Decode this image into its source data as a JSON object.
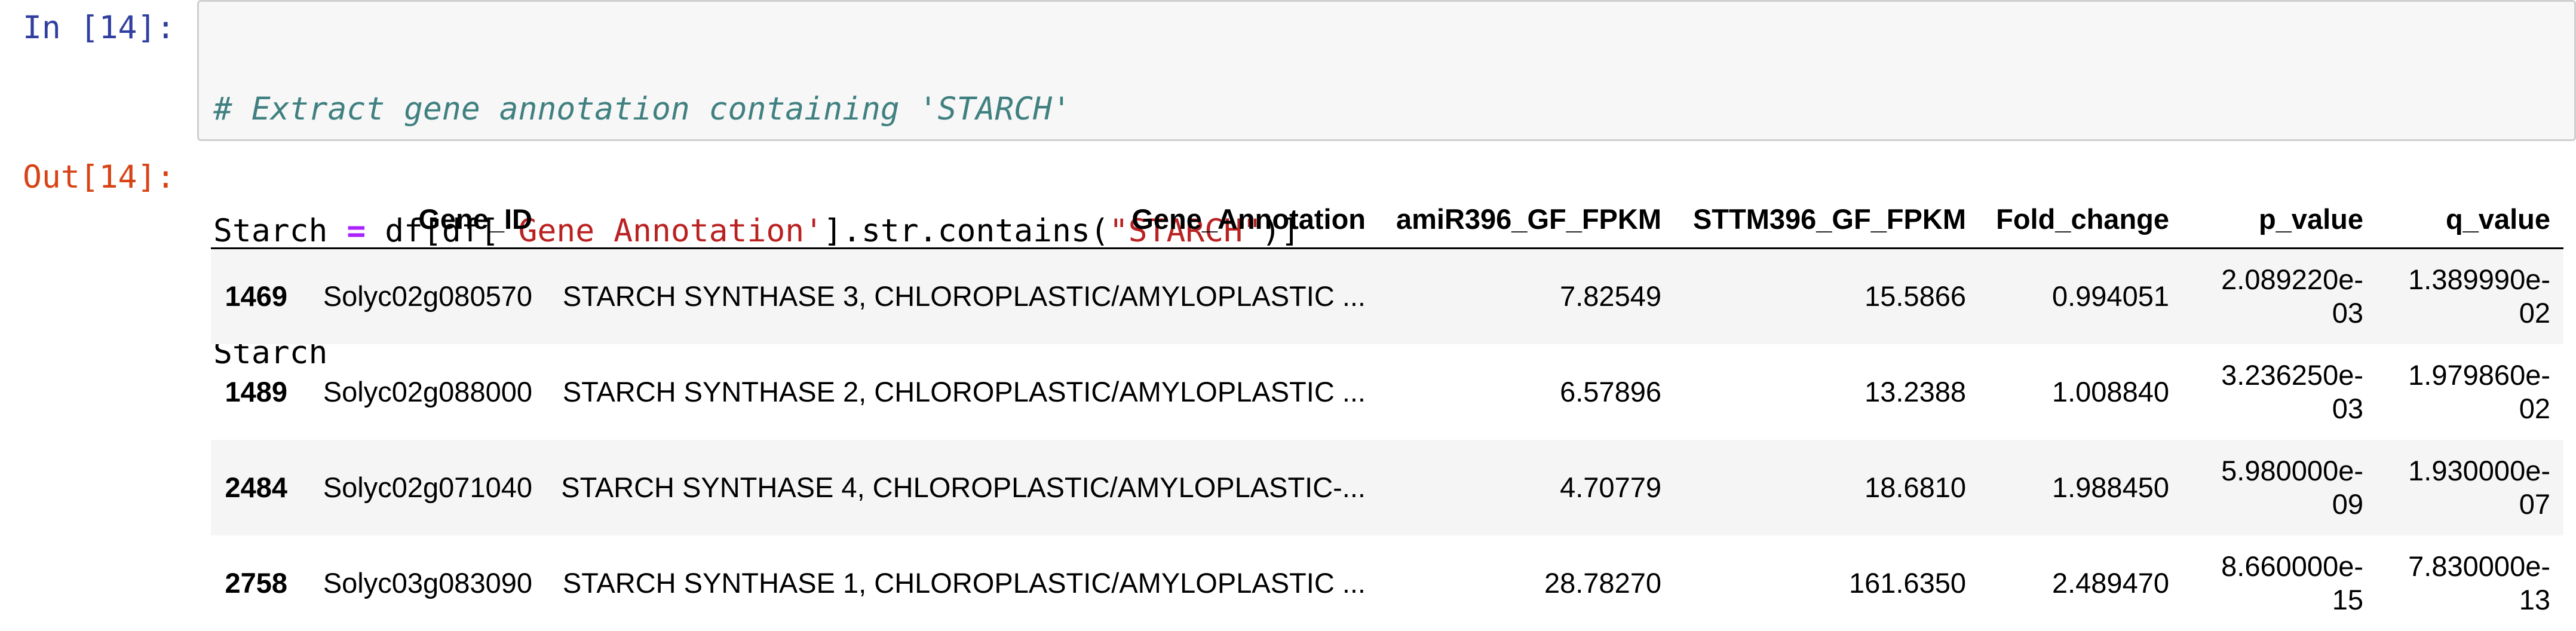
{
  "cell": {
    "in_prompt": "In [14]:",
    "out_prompt": "Out[14]:",
    "code": {
      "comment": "# Extract gene annotation containing 'STARCH'",
      "line2": {
        "var": "Starch ",
        "op": "=",
        "part1": " df[df[",
        "str1": "'Gene_Annotation'",
        "part2": "].str.contains(",
        "str2": "\"STARCH\"",
        "part3": ")]"
      },
      "line3": "Starch"
    }
  },
  "table": {
    "columns": [
      "Gene_ID",
      "Gene_Annotation",
      "amiR396_GF_FPKM",
      "STTM396_GF_FPKM",
      "Fold_change",
      "p_value",
      "q_value"
    ],
    "rows": [
      {
        "index": "1469",
        "cells": [
          "Solyc02g080570",
          "STARCH SYNTHASE 3, CHLOROPLASTIC/AMYLOPLASTIC ...",
          "7.82549",
          "15.5866",
          "0.994051",
          "2.089220e-03",
          "1.389990e-02"
        ]
      },
      {
        "index": "1489",
        "cells": [
          "Solyc02g088000",
          "STARCH SYNTHASE 2, CHLOROPLASTIC/AMYLOPLASTIC ...",
          "6.57896",
          "13.2388",
          "1.008840",
          "3.236250e-03",
          "1.979860e-02"
        ]
      },
      {
        "index": "2484",
        "cells": [
          "Solyc02g071040",
          "STARCH SYNTHASE 4, CHLOROPLASTIC/AMYLOPLASTIC-...",
          "4.70779",
          "18.6810",
          "1.988450",
          "5.980000e-09",
          "1.930000e-07"
        ]
      },
      {
        "index": "2758",
        "cells": [
          "Solyc03g083090",
          "STARCH SYNTHASE 1, CHLOROPLASTIC/AMYLOPLASTIC ...",
          "28.78270",
          "161.6350",
          "2.489470",
          "8.660000e-15",
          "7.830000e-13"
        ]
      }
    ]
  }
}
